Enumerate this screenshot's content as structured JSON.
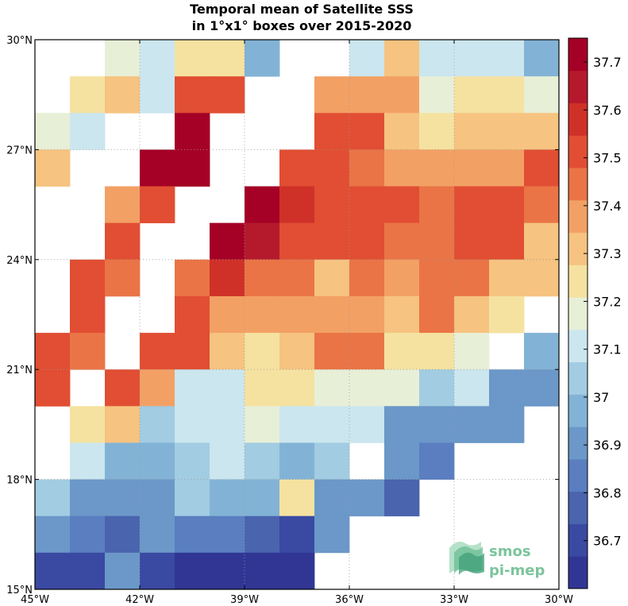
{
  "chart_data": {
    "type": "heatmap",
    "title": [
      "Temporal mean of Satellite SSS",
      "in 1°x1° boxes over 2015-2020"
    ],
    "x_range": [
      -45,
      -30
    ],
    "y_range": [
      15,
      30
    ],
    "x_tick_values": [
      -45,
      -42,
      -39,
      -36,
      -33,
      -30
    ],
    "y_tick_values": [
      15,
      18,
      21,
      24,
      27,
      30
    ],
    "x_tick_labels": [
      "45°W",
      "42°W",
      "39°W",
      "36°W",
      "33°W",
      "30°W"
    ],
    "y_tick_labels": [
      "15°N",
      "18°N",
      "21°N",
      "24°N",
      "27°N",
      "30°N"
    ],
    "grid": true,
    "colorbar": {
      "vmin": 36.6,
      "vmax": 37.75,
      "ticks": [
        36.7,
        36.8,
        36.9,
        37.0,
        37.1,
        37.2,
        37.3,
        37.4,
        37.5,
        37.6,
        37.7
      ],
      "tick_labels": [
        "36.7",
        "36.8",
        "36.9",
        "37",
        "37.1",
        "37.2",
        "37.3",
        "37.4",
        "37.5",
        "37.6",
        "37.7"
      ],
      "colors": [
        "#313695",
        "#3a49a2",
        "#4a64ae",
        "#5a7ec0",
        "#6b98c8",
        "#82b3d6",
        "#a2cce2",
        "#cbe6ee",
        "#e8efd7",
        "#f5e2a0",
        "#f6c380",
        "#f3a064",
        "#ea7446",
        "#e14e33",
        "#cf3128",
        "#b51a2c",
        "#a50026"
      ]
    },
    "lon_centers": [
      -44.5,
      -43.5,
      -42.5,
      -41.5,
      -40.5,
      -39.5,
      -38.5,
      -37.5,
      -36.5,
      -35.5,
      -34.5,
      -33.5,
      -32.5,
      -31.5,
      -30.5
    ],
    "lat_centers": [
      29.5,
      28.5,
      27.5,
      26.5,
      25.5,
      24.5,
      23.5,
      22.5,
      21.5,
      20.5,
      19.5,
      18.5,
      17.5,
      16.5,
      15.5
    ],
    "values": [
      [
        null,
        null,
        37.17,
        37.13,
        37.25,
        37.25,
        36.98,
        null,
        null,
        37.13,
        37.33,
        37.13,
        37.08,
        37.13,
        36.98
      ],
      [
        null,
        37.27,
        37.33,
        37.13,
        37.48,
        37.48,
        null,
        null,
        37.38,
        37.38,
        37.38,
        37.17,
        37.27,
        37.27,
        37.17
      ],
      [
        37.17,
        37.13,
        null,
        null,
        37.73,
        null,
        null,
        null,
        37.48,
        37.48,
        37.33,
        37.27,
        37.33,
        37.33,
        37.33
      ],
      [
        37.33,
        null,
        null,
        37.73,
        37.73,
        null,
        null,
        37.48,
        37.53,
        37.43,
        37.38,
        37.38,
        37.38,
        37.38,
        37.53
      ],
      [
        null,
        null,
        37.38,
        37.48,
        null,
        null,
        37.73,
        37.58,
        37.48,
        37.48,
        37.53,
        37.43,
        37.48,
        37.53,
        37.43
      ],
      [
        null,
        null,
        37.53,
        null,
        null,
        37.73,
        37.63,
        37.48,
        37.48,
        37.48,
        37.43,
        37.43,
        37.53,
        37.48,
        37.33
      ],
      [
        null,
        37.53,
        37.43,
        null,
        37.43,
        37.58,
        37.43,
        37.43,
        37.33,
        37.43,
        37.38,
        37.43,
        37.43,
        37.33,
        37.33
      ],
      [
        null,
        37.53,
        null,
        null,
        37.48,
        37.38,
        37.38,
        37.38,
        37.38,
        37.38,
        37.33,
        37.43,
        37.33,
        37.27,
        null
      ],
      [
        37.48,
        37.43,
        null,
        37.48,
        37.48,
        37.33,
        37.27,
        37.33,
        37.43,
        37.43,
        37.27,
        37.27,
        37.17,
        null,
        36.98
      ],
      [
        37.53,
        null,
        37.53,
        37.38,
        37.13,
        37.08,
        37.27,
        37.27,
        37.17,
        37.17,
        37.17,
        37.03,
        37.08,
        36.93,
        36.93
      ],
      [
        null,
        37.27,
        37.33,
        37.03,
        37.08,
        37.08,
        37.17,
        37.08,
        37.08,
        37.08,
        36.88,
        36.88,
        36.88,
        36.88,
        null
      ],
      [
        null,
        37.13,
        36.98,
        36.98,
        37.03,
        37.08,
        37.03,
        36.98,
        37.03,
        null,
        36.88,
        36.83,
        null,
        null,
        null
      ],
      [
        37.03,
        36.93,
        36.88,
        36.88,
        37.03,
        36.98,
        36.98,
        37.25,
        36.88,
        36.88,
        36.78,
        null,
        null,
        null,
        null
      ],
      [
        36.88,
        36.83,
        36.78,
        36.88,
        36.83,
        36.83,
        36.78,
        36.73,
        36.88,
        null,
        null,
        null,
        null,
        null,
        null
      ],
      [
        36.73,
        36.73,
        36.88,
        36.73,
        36.65,
        36.65,
        36.65,
        36.65,
        null,
        null,
        null,
        null,
        null,
        null,
        null
      ]
    ]
  },
  "logo": {
    "line1": "smos",
    "line2": "pi-mep"
  },
  "colors": {
    "logo_green": "#7cc49c"
  }
}
